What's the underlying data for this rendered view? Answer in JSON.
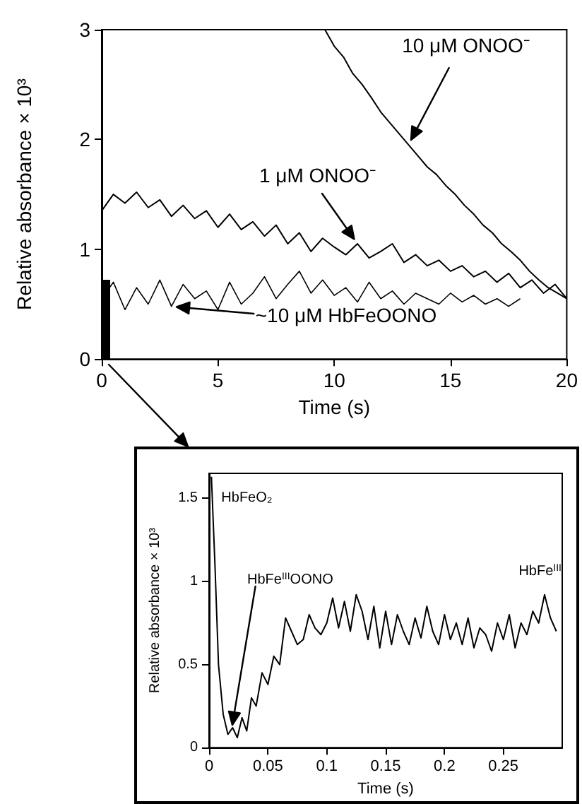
{
  "chart_data": [
    {
      "type": "line",
      "xlabel": "Time (s)",
      "ylabel": "Relative absorbance × 10³",
      "xlim": [
        0,
        20
      ],
      "xticks": [
        0,
        5,
        10,
        15,
        20
      ],
      "ylim": [
        0,
        3
      ],
      "yticks": [
        0,
        1,
        2,
        3
      ],
      "grid": false,
      "series": [
        {
          "name": "10 μM ONOO⁻",
          "color": "#000000",
          "x": [
            9.6,
            10,
            10.4,
            10.8,
            11.2,
            11.6,
            12,
            12.4,
            12.8,
            13.2,
            13.6,
            14,
            14.4,
            14.8,
            15.2,
            15.6,
            16,
            16.4,
            16.8,
            17.2,
            17.6,
            18,
            18.4,
            18.8,
            19.2,
            19.6,
            20
          ],
          "values": [
            3.0,
            2.85,
            2.75,
            2.6,
            2.5,
            2.38,
            2.25,
            2.15,
            2.05,
            1.95,
            1.85,
            1.75,
            1.68,
            1.58,
            1.5,
            1.4,
            1.32,
            1.22,
            1.15,
            1.05,
            0.98,
            0.9,
            0.8,
            0.72,
            0.65,
            0.6,
            0.55
          ]
        },
        {
          "name": "1 μM ONOO⁻",
          "color": "#000000",
          "x": [
            0,
            0.5,
            1,
            1.5,
            2,
            2.5,
            3,
            3.5,
            4,
            4.5,
            5,
            5.5,
            6,
            6.5,
            7,
            7.5,
            8,
            8.5,
            9,
            9.5,
            10,
            10.5,
            11,
            11.5,
            12,
            12.5,
            13,
            13.5,
            14,
            14.5,
            15,
            15.5,
            16,
            16.5,
            17,
            17.5,
            18,
            18.5,
            19,
            19.5,
            20
          ],
          "values": [
            1.35,
            1.5,
            1.42,
            1.52,
            1.38,
            1.45,
            1.3,
            1.4,
            1.28,
            1.35,
            1.2,
            1.32,
            1.18,
            1.25,
            1.12,
            1.22,
            1.05,
            1.15,
            0.98,
            1.1,
            1.02,
            0.95,
            1.05,
            0.92,
            0.98,
            1.05,
            0.88,
            0.95,
            0.85,
            0.9,
            0.8,
            0.85,
            0.75,
            0.8,
            0.7,
            0.78,
            0.65,
            0.72,
            0.6,
            0.68,
            0.55
          ]
        },
        {
          "name": "~10 μM HbFeOONO",
          "color": "#000000",
          "x": [
            0,
            0.5,
            1,
            1.5,
            2,
            2.5,
            3,
            3.5,
            4,
            4.5,
            5,
            5.5,
            6,
            6.5,
            7,
            7.5,
            8,
            8.5,
            9,
            9.5,
            10,
            10.5,
            11,
            11.5,
            12,
            12.5,
            13,
            13.5,
            14,
            14.5,
            15,
            15.5,
            16,
            16.5,
            17,
            17.5,
            18
          ],
          "values": [
            0.55,
            0.7,
            0.45,
            0.65,
            0.5,
            0.72,
            0.48,
            0.68,
            0.55,
            0.62,
            0.45,
            0.7,
            0.5,
            0.6,
            0.75,
            0.55,
            0.68,
            0.8,
            0.6,
            0.72,
            0.58,
            0.65,
            0.52,
            0.7,
            0.55,
            0.62,
            0.5,
            0.6,
            0.55,
            0.5,
            0.6,
            0.52,
            0.58,
            0.5,
            0.55,
            0.48,
            0.55
          ]
        }
      ]
    },
    {
      "type": "line",
      "xlabel": "Time (s)",
      "ylabel": "Relative absorbance × 10³",
      "xlim": [
        0,
        0.3
      ],
      "xticks": [
        0,
        0.05,
        0.1,
        0.15,
        0.2,
        0.25
      ],
      "ylim": [
        0,
        1.65
      ],
      "yticks": [
        0,
        0.5,
        1,
        1.5
      ],
      "grid": false,
      "annotations": [
        {
          "text": "HbFeO₂",
          "x": 0.002,
          "y": 1.6
        },
        "HbFe$^{III}$OONO",
        {
          "text": "HbFe$^{III}$",
          "x": 0.285,
          "y": 0.92
        }
      ],
      "series": [
        {
          "color": "#000000",
          "x": [
            0.002,
            0.005,
            0.008,
            0.012,
            0.016,
            0.02,
            0.024,
            0.028,
            0.032,
            0.036,
            0.04,
            0.045,
            0.05,
            0.055,
            0.06,
            0.065,
            0.07,
            0.075,
            0.08,
            0.085,
            0.09,
            0.095,
            0.1,
            0.105,
            0.11,
            0.115,
            0.12,
            0.125,
            0.13,
            0.135,
            0.14,
            0.145,
            0.15,
            0.155,
            0.16,
            0.165,
            0.17,
            0.175,
            0.18,
            0.185,
            0.19,
            0.195,
            0.2,
            0.205,
            0.21,
            0.215,
            0.22,
            0.225,
            0.23,
            0.235,
            0.24,
            0.245,
            0.25,
            0.255,
            0.26,
            0.265,
            0.27,
            0.275,
            0.28,
            0.285,
            0.29,
            0.295
          ],
          "values": [
            1.63,
            1.1,
            0.5,
            0.2,
            0.08,
            0.12,
            0.06,
            0.18,
            0.1,
            0.3,
            0.25,
            0.45,
            0.38,
            0.55,
            0.5,
            0.78,
            0.7,
            0.62,
            0.65,
            0.8,
            0.72,
            0.68,
            0.75,
            0.9,
            0.72,
            0.88,
            0.7,
            0.92,
            0.82,
            0.65,
            0.85,
            0.6,
            0.82,
            0.62,
            0.8,
            0.7,
            0.62,
            0.78,
            0.66,
            0.85,
            0.7,
            0.62,
            0.8,
            0.65,
            0.75,
            0.62,
            0.78,
            0.6,
            0.72,
            0.68,
            0.58,
            0.75,
            0.65,
            0.8,
            0.6,
            0.75,
            0.68,
            0.82,
            0.75,
            0.92,
            0.78,
            0.7
          ]
        }
      ]
    }
  ]
}
